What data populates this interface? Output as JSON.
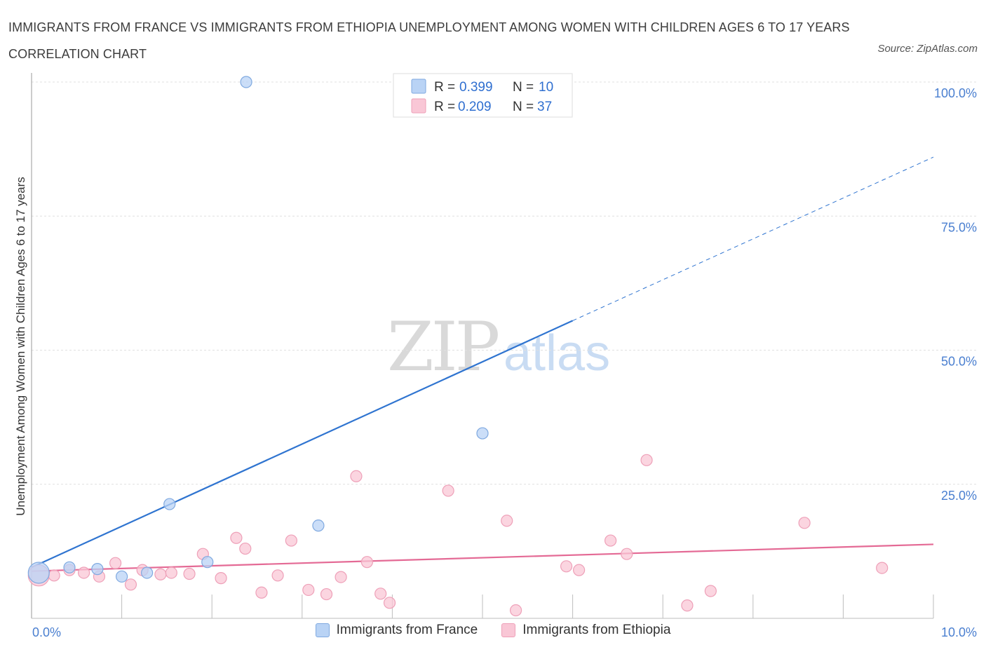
{
  "title": "IMMIGRANTS FROM FRANCE VS IMMIGRANTS FROM ETHIOPIA UNEMPLOYMENT AMONG WOMEN WITH CHILDREN AGES 6 TO 17 YEARS CORRELATION CHART",
  "source": "Source: ZipAtlas.com",
  "watermark": {
    "zip": "ZIP",
    "atlas": "atlas"
  },
  "colors": {
    "france_fill": "#b9d3f5",
    "france_stroke": "#7fa9e0",
    "france_line": "#2f74d0",
    "ethiopia_fill": "#f9c7d6",
    "ethiopia_stroke": "#eea0b8",
    "ethiopia_line": "#e46a95",
    "tick_label": "#4a7fd0",
    "grid": "#e0e0e0"
  },
  "legend_stats": [
    {
      "series": "Immigrants from France",
      "r_label": "R =",
      "r_value": "0.399",
      "n_label": "N =",
      "n_value": "10"
    },
    {
      "series": "Immigrants from Ethiopia",
      "r_label": "R =",
      "r_value": "0.209",
      "n_label": "N =",
      "n_value": "37"
    }
  ],
  "chart_data": {
    "type": "scatter",
    "title": "IMMIGRANTS FROM FRANCE VS IMMIGRANTS FROM ETHIOPIA UNEMPLOYMENT AMONG WOMEN WITH CHILDREN AGES 6 TO 17 YEARS CORRELATION CHART",
    "xlabel": "",
    "ylabel": "Unemployment Among Women with Children Ages 6 to 17 years",
    "xlim": [
      0,
      10
    ],
    "ylim": [
      0,
      100
    ],
    "x_tick_labels": [
      "0.0%",
      "10.0%"
    ],
    "y_ticks": [
      25,
      50,
      75,
      100
    ],
    "y_tick_labels": [
      "25.0%",
      "50.0%",
      "75.0%",
      "100.0%"
    ],
    "grid": true,
    "legend": "bottom-center",
    "series": [
      {
        "name": "Immigrants from France",
        "r": 0.399,
        "n": 10,
        "points": [
          {
            "x": 0.08,
            "y": 8.5,
            "big": true
          },
          {
            "x": 0.42,
            "y": 9.5
          },
          {
            "x": 0.73,
            "y": 9.2
          },
          {
            "x": 1.0,
            "y": 7.8
          },
          {
            "x": 1.28,
            "y": 8.5
          },
          {
            "x": 1.53,
            "y": 21.3
          },
          {
            "x": 1.95,
            "y": 10.5
          },
          {
            "x": 2.38,
            "y": 100.0
          },
          {
            "x": 3.18,
            "y": 17.3
          },
          {
            "x": 5.0,
            "y": 34.5
          }
        ],
        "trend": {
          "x0": 0.0,
          "y0": 9.5,
          "x1": 6.0,
          "y1": 55.5,
          "dash_x1": 10.0,
          "dash_y1": 86.0
        }
      },
      {
        "name": "Immigrants from Ethiopia",
        "r": 0.209,
        "n": 37,
        "points": [
          {
            "x": 0.08,
            "y": 8.0,
            "big": true
          },
          {
            "x": 0.25,
            "y": 8.0
          },
          {
            "x": 0.42,
            "y": 9.0
          },
          {
            "x": 0.58,
            "y": 8.5
          },
          {
            "x": 0.75,
            "y": 7.8
          },
          {
            "x": 0.93,
            "y": 10.3
          },
          {
            "x": 1.1,
            "y": 6.3
          },
          {
            "x": 1.23,
            "y": 9.0
          },
          {
            "x": 1.43,
            "y": 8.2
          },
          {
            "x": 1.55,
            "y": 8.5
          },
          {
            "x": 1.75,
            "y": 8.3
          },
          {
            "x": 1.9,
            "y": 12.0
          },
          {
            "x": 2.1,
            "y": 7.5
          },
          {
            "x": 2.27,
            "y": 15.0
          },
          {
            "x": 2.37,
            "y": 13.0
          },
          {
            "x": 2.55,
            "y": 4.8
          },
          {
            "x": 2.73,
            "y": 8.0
          },
          {
            "x": 2.88,
            "y": 14.5
          },
          {
            "x": 3.07,
            "y": 5.3
          },
          {
            "x": 3.27,
            "y": 4.5
          },
          {
            "x": 3.43,
            "y": 7.7
          },
          {
            "x": 3.6,
            "y": 26.5
          },
          {
            "x": 3.72,
            "y": 10.5
          },
          {
            "x": 3.87,
            "y": 4.6
          },
          {
            "x": 3.97,
            "y": 2.9
          },
          {
            "x": 4.62,
            "y": 23.8
          },
          {
            "x": 5.27,
            "y": 18.2
          },
          {
            "x": 5.37,
            "y": 1.5
          },
          {
            "x": 5.93,
            "y": 9.7
          },
          {
            "x": 6.07,
            "y": 9.0
          },
          {
            "x": 6.42,
            "y": 14.5
          },
          {
            "x": 6.6,
            "y": 12.0
          },
          {
            "x": 6.82,
            "y": 29.5
          },
          {
            "x": 7.27,
            "y": 2.4
          },
          {
            "x": 7.53,
            "y": 5.1
          },
          {
            "x": 8.57,
            "y": 17.8
          },
          {
            "x": 9.43,
            "y": 9.4
          }
        ],
        "trend": {
          "x0": 0.0,
          "y0": 8.8,
          "x1": 10.0,
          "y1": 13.8
        }
      }
    ]
  }
}
